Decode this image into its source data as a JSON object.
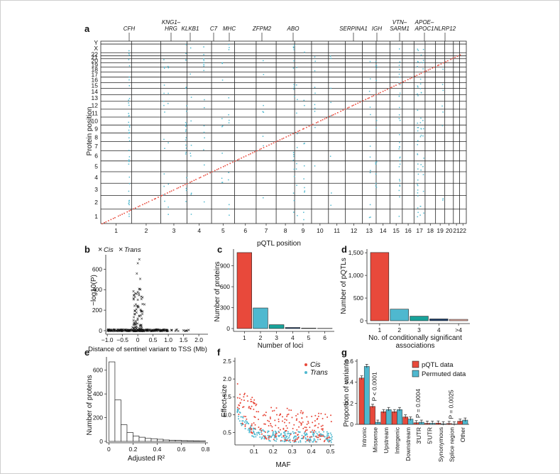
{
  "colors": {
    "cis": "#e8493b",
    "trans": "#4fb8cf",
    "red_bar": "#e8493b",
    "blue_bar": "#4fb8cf",
    "teal_bar": "#19a29a",
    "navy_bar": "#1e3f6b",
    "pink_bar": "#f2b2a6"
  },
  "panel_labels": [
    "a",
    "b",
    "c",
    "d",
    "e",
    "f",
    "g"
  ],
  "chart_data": [
    {
      "id": "a",
      "type": "scatter",
      "xlabel": "pQTL position",
      "ylabel": "Protein position",
      "x_ticks": [
        "1",
        "2",
        "3",
        "4",
        "5",
        "6",
        "7",
        "8",
        "9",
        "10",
        "11",
        "12",
        "13",
        "14",
        "15",
        "16",
        "17",
        "18",
        "19",
        "20",
        "21",
        "22"
      ],
      "y_ticks": [
        "1",
        "2",
        "3",
        "4",
        "5",
        "6",
        "7",
        "8",
        "9",
        "10",
        "11",
        "12",
        "13",
        "14",
        "15",
        "16",
        "17",
        "18",
        "19",
        "20",
        "21",
        "22",
        "X",
        "Y"
      ],
      "gene_labels": [
        "CFH",
        "KNG1–\nHRG",
        "KLKB1",
        "C7",
        "MHC",
        "ZFPM2",
        "ABO",
        "SERPINA1",
        "IGH",
        "VTN–\nSARM1",
        "APOE–\nAPOC1",
        "NLRP12"
      ]
    },
    {
      "id": "b",
      "type": "scatter",
      "legend": [
        "Cis",
        "Trans"
      ],
      "xlabel": "Distance of sentinel variant to TSS (Mb)",
      "ylabel": "−log10(P)",
      "x_ticks": [
        "−1.0",
        "−0.5",
        "0",
        "0.5",
        "1.0",
        "1.5",
        "2.0"
      ],
      "y_ticks": [
        "0",
        "200",
        "400",
        "600"
      ],
      "xlim": [
        -1.05,
        2.3
      ],
      "ylim": [
        0,
        720
      ]
    },
    {
      "id": "c",
      "type": "bar",
      "categories": [
        "1",
        "2",
        "3",
        "4",
        "5",
        "6"
      ],
      "values": [
        1090,
        295,
        55,
        15,
        6,
        3
      ],
      "xlabel": "Number of loci",
      "ylabel": "Number of proteins",
      "y_ticks": [
        "0",
        "300",
        "600",
        "900"
      ],
      "ylim": [
        0,
        1120
      ]
    },
    {
      "id": "d",
      "type": "bar",
      "categories": [
        "1",
        "2",
        "3",
        "4",
        ">4"
      ],
      "values": [
        1505,
        255,
        100,
        40,
        30
      ],
      "xlabel": "No. of conditionally significant\nassociations",
      "ylabel": "Number of pQTLs",
      "y_ticks": [
        "0",
        "500",
        "1,000",
        "1,500"
      ],
      "ylim": [
        0,
        1550
      ]
    },
    {
      "id": "e",
      "type": "bar",
      "bins_start": [
        0,
        0.05,
        0.1,
        0.15,
        0.2,
        0.25,
        0.3,
        0.35,
        0.4,
        0.45,
        0.5,
        0.55,
        0.6,
        0.65,
        0.7,
        0.75
      ],
      "values": [
        670,
        350,
        140,
        75,
        45,
        35,
        25,
        22,
        18,
        12,
        10,
        8,
        6,
        5,
        4,
        3
      ],
      "xlabel": "Adjusted R²",
      "ylabel": "Number of proteins",
      "x_ticks": [
        "0",
        "0.2",
        "0.4",
        "0.6",
        "0.8"
      ],
      "y_ticks": [
        "0",
        "200",
        "400",
        "600"
      ],
      "xlim": [
        -0.02,
        0.82
      ],
      "ylim": [
        0,
        700
      ]
    },
    {
      "id": "f",
      "type": "scatter",
      "legend": [
        "Cis",
        "Trans"
      ],
      "xlabel": "MAF",
      "ylabel": "Effect size",
      "x_ticks": [
        "0.1",
        "0.2",
        "0.3",
        "0.4",
        "0.5"
      ],
      "y_ticks": [
        "0.5",
        "1.0",
        "1.5",
        "2.0",
        "2.5"
      ],
      "xlim": [
        0,
        0.52
      ],
      "ylim": [
        0.15,
        2.6
      ]
    },
    {
      "id": "g",
      "type": "bar",
      "categories": [
        "Intronic",
        "Missense",
        "Upstream",
        "Intergenic",
        "Downstream",
        "3′UTR",
        "5′UTR",
        "Synonymous",
        "Splice region",
        "Other"
      ],
      "series": [
        {
          "name": "pQTL data",
          "values": [
            0.44,
            0.17,
            0.12,
            0.12,
            0.07,
            0.015,
            0.01,
            0.012,
            0.008,
            0.03
          ]
        },
        {
          "name": "Permuted data",
          "values": [
            0.55,
            0.02,
            0.14,
            0.14,
            0.05,
            0.02,
            0.01,
            0.005,
            0.003,
            0.04
          ]
        }
      ],
      "ylabel": "Proportion of variants",
      "y_ticks": [
        "0",
        "0.2",
        "0.4",
        "0.6"
      ],
      "ylim": [
        0,
        0.62
      ],
      "annotations": [
        "P < 0.0001",
        "P = 0.0004",
        "P = 0.0025"
      ]
    }
  ]
}
